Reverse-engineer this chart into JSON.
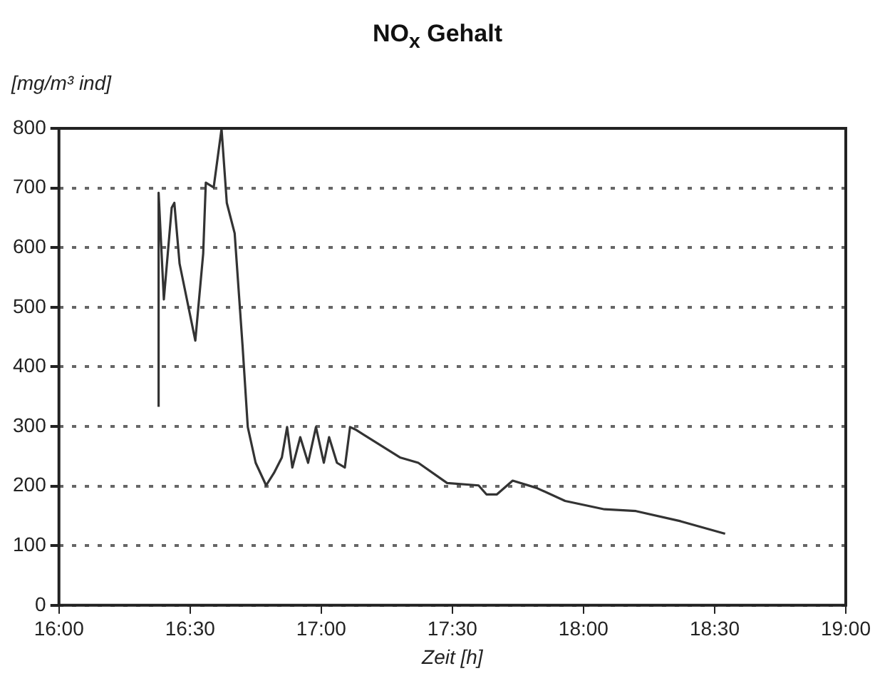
{
  "chart_data": {
    "type": "line",
    "title": "NO$_{x}$ Gehalt",
    "ylabel": "[mg/m³ ind]",
    "xlabel": "Zeit [h]",
    "x": [
      16.38,
      16.38,
      16.4,
      16.43,
      16.44,
      16.46,
      16.52,
      16.55,
      16.56,
      16.59,
      16.62,
      16.64,
      16.67,
      16.7,
      16.72,
      16.75,
      16.79,
      16.82,
      16.85,
      16.87,
      16.89,
      16.92,
      16.95,
      16.98,
      17.01,
      17.03,
      17.06,
      17.09,
      17.11,
      17.13,
      17.3,
      17.37,
      17.48,
      17.6,
      17.63,
      17.67,
      17.73,
      17.82,
      17.93,
      18.08,
      18.2,
      18.37,
      18.54
    ],
    "series": [
      {
        "color": "#333333",
        "values": [
          333,
          692,
          513,
          667,
          675,
          573,
          444,
          590,
          709,
          701,
          799,
          675,
          624,
          436,
          299,
          239,
          201,
          222,
          248,
          299,
          231,
          282,
          239,
          299,
          239,
          282,
          239,
          231,
          299,
          295,
          248,
          239,
          205,
          201,
          186,
          186,
          209,
          197,
          175,
          161,
          158,
          141,
          120
        ]
      }
    ],
    "xlim": [
      16,
      19
    ],
    "xticks": [
      {
        "value": 16,
        "label": "16:00"
      },
      {
        "value": 16.5,
        "label": "16:30"
      },
      {
        "value": 17,
        "label": "17:00"
      },
      {
        "value": 17.5,
        "label": "17:30"
      },
      {
        "value": 18,
        "label": "18:00"
      },
      {
        "value": 18.5,
        "label": "18:30"
      },
      {
        "value": 19,
        "label": "19:00"
      }
    ],
    "ylim": [
      0,
      800
    ],
    "yticks": [
      0,
      100,
      200,
      300,
      400,
      500,
      600,
      700,
      800
    ],
    "grid": "y",
    "legend": false,
    "marker": "none",
    "line_style": "solid"
  }
}
